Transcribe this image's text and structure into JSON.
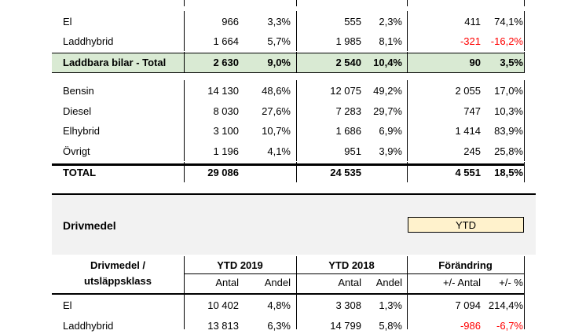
{
  "table1": {
    "rows": [
      {
        "name": "El",
        "a19": "966",
        "s19": "3,3%",
        "a18": "555",
        "s18": "2,3%",
        "d": "411",
        "p": "74,1%",
        "neg": false,
        "style": "normal"
      },
      {
        "name": "Laddhybrid",
        "a19": "1 664",
        "s19": "5,7%",
        "a18": "1 985",
        "s18": "8,1%",
        "d": "-321",
        "p": "-16,2%",
        "neg": true,
        "style": "normal"
      },
      {
        "name": "Laddbara bilar - Total",
        "a19": "2 630",
        "s19": "9,0%",
        "a18": "2 540",
        "s18": "10,4%",
        "d": "90",
        "p": "3,5%",
        "neg": false,
        "style": "subtotal"
      },
      {
        "name": "Bensin",
        "a19": "14 130",
        "s19": "48,6%",
        "a18": "12 075",
        "s18": "49,2%",
        "d": "2 055",
        "p": "17,0%",
        "neg": false,
        "style": "normal"
      },
      {
        "name": "Diesel",
        "a19": "8 030",
        "s19": "27,6%",
        "a18": "7 283",
        "s18": "29,7%",
        "d": "747",
        "p": "10,3%",
        "neg": false,
        "style": "normal"
      },
      {
        "name": "Elhybrid",
        "a19": "3 100",
        "s19": "10,7%",
        "a18": "1 686",
        "s18": "6,9%",
        "d": "1 414",
        "p": "83,9%",
        "neg": false,
        "style": "normal"
      },
      {
        "name": "Övrigt",
        "a19": "1 196",
        "s19": "4,1%",
        "a18": "951",
        "s18": "3,9%",
        "d": "245",
        "p": "25,8%",
        "neg": false,
        "style": "normal"
      },
      {
        "name": "TOTAL",
        "a19": "29 086",
        "s19": "",
        "a18": "24 535",
        "s18": "",
        "d": "4 551",
        "p": "18,5%",
        "neg": false,
        "style": "total"
      }
    ]
  },
  "section2": {
    "title": "Drivmedel",
    "period_label": "YTD",
    "header": {
      "col1_line1": "Drivmedel /",
      "col1_line2": "utsläppsklass",
      "ytd2019": "YTD 2019",
      "ytd2018": "YTD 2018",
      "change": "Förändring",
      "antal": "Antal",
      "andel": "Andel",
      "plus_antal": "+/- Antal",
      "plus_pct": "+/- %"
    },
    "rows": [
      {
        "name": "El",
        "a19": "10 402",
        "s19": "4,8%",
        "a18": "3 308",
        "s18": "1,3%",
        "d": "7 094",
        "p": "214,4%",
        "neg": false
      },
      {
        "name": "Laddhybrid",
        "a19": "13 813",
        "s19": "6,3%",
        "a18": "14 799",
        "s18": "5,8%",
        "d": "-986",
        "p": "-6,7%",
        "neg": true
      }
    ]
  },
  "colors": {
    "subtotal_bg": "#d9ead3",
    "section_bg": "#f2f2f2",
    "period_bg": "#fff2cc",
    "negative": "#ff0000"
  }
}
